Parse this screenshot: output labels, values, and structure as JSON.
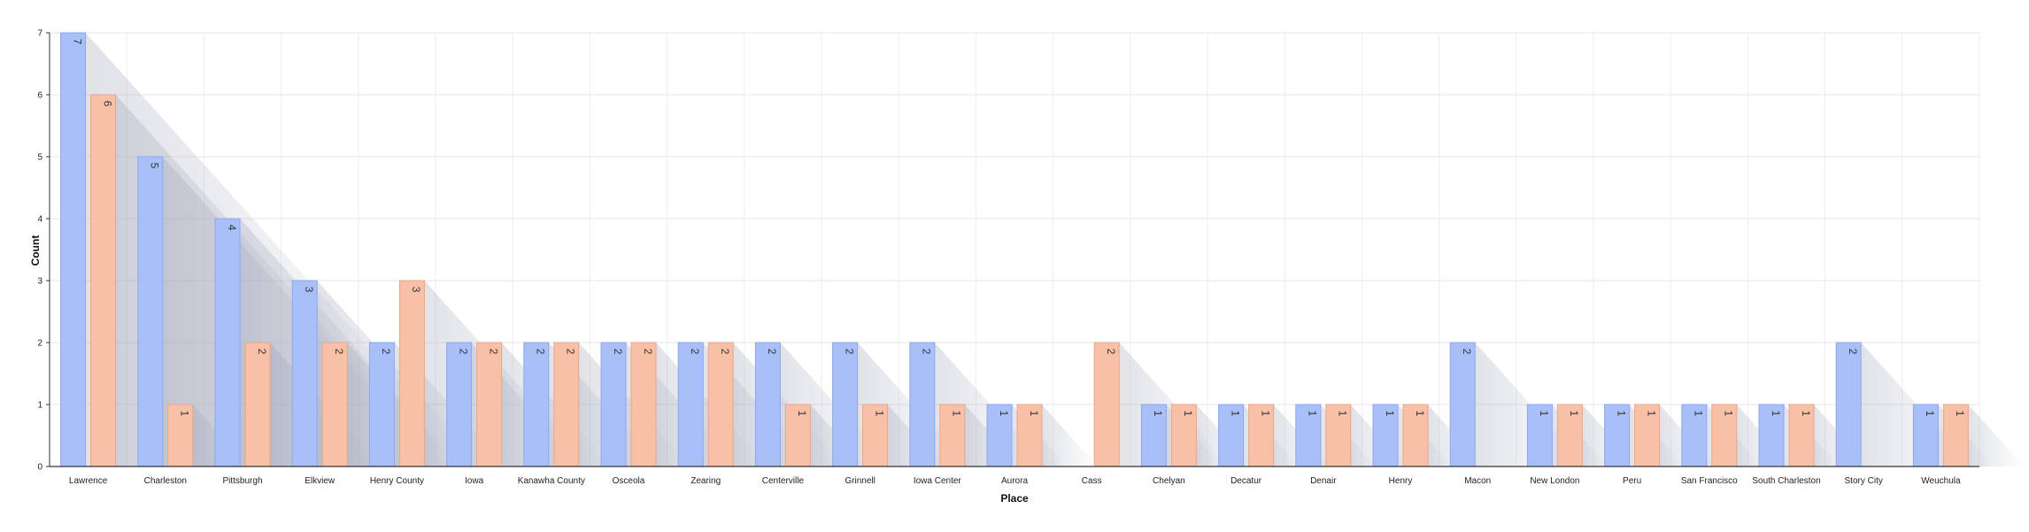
{
  "chart_data": {
    "type": "bar",
    "title": "",
    "xlabel": "Place",
    "ylabel": "Count",
    "ylim": [
      0,
      7
    ],
    "yticks": [
      0,
      1,
      2,
      3,
      4,
      5,
      6,
      7
    ],
    "grid": true,
    "legend": "none",
    "categories": [
      "Lawrence",
      "Charleston",
      "Pittsburgh",
      "Elkview",
      "Henry County",
      "Iowa",
      "Kanawha County",
      "Osceola",
      "Zearing",
      "Centerville",
      "Grinnell",
      "Iowa Center",
      "Aurora",
      "Cass",
      "Chelyan",
      "Decatur",
      "Denair",
      "Henry",
      "Macon",
      "New London",
      "Peru",
      "San Francisco",
      "South Charleston",
      "Story City",
      "Weuchula"
    ],
    "series": [
      {
        "values": [
          7,
          5,
          4,
          3,
          2,
          2,
          2,
          2,
          2,
          2,
          2,
          2,
          1,
          0,
          1,
          1,
          1,
          1,
          2,
          1,
          1,
          1,
          1,
          2,
          1
        ]
      },
      {
        "values": [
          6,
          1,
          2,
          2,
          3,
          2,
          2,
          2,
          2,
          1,
          1,
          1,
          1,
          2,
          1,
          1,
          1,
          1,
          0,
          1,
          1,
          1,
          1,
          0,
          1
        ]
      }
    ],
    "colors": [
      "#a9bff7",
      "#f9c0a8"
    ],
    "stroke_colors": [
      "#8ea7ea",
      "#eaa58a"
    ]
  }
}
